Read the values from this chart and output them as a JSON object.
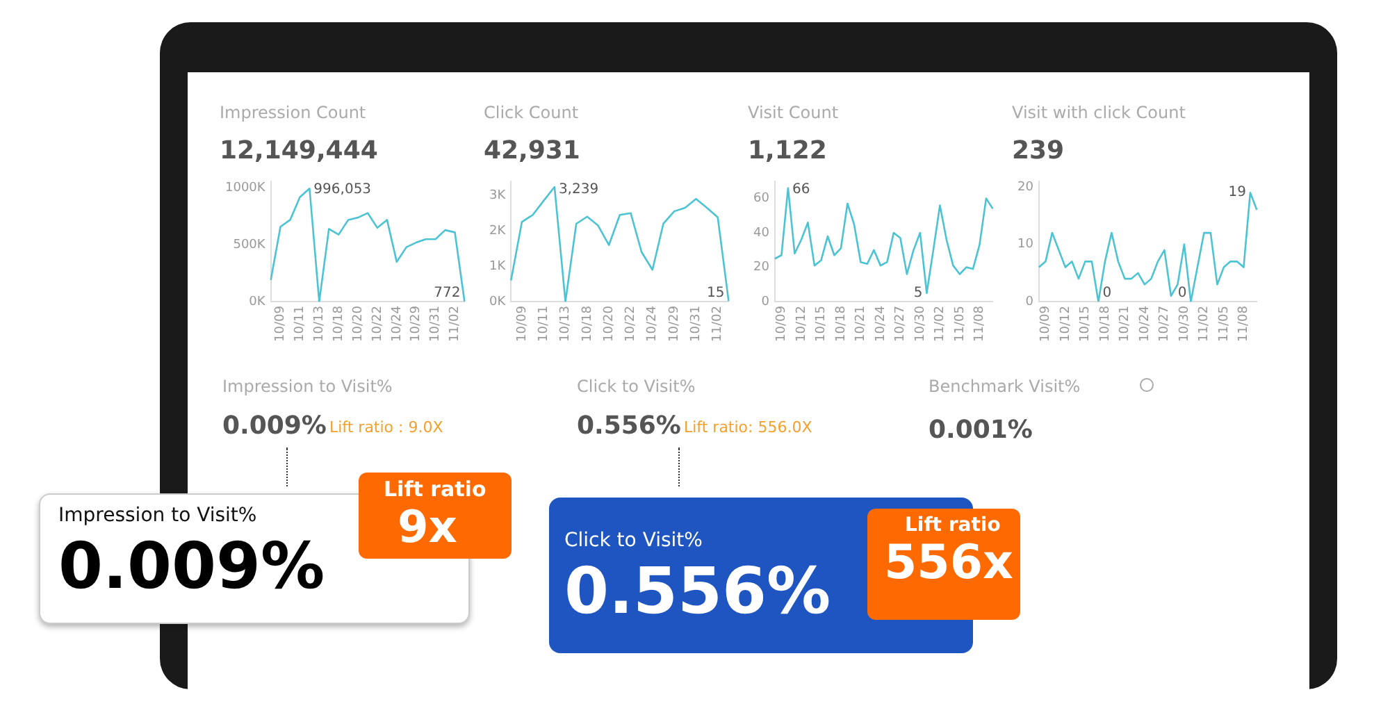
{
  "chart_data": [
    {
      "type": "line",
      "title": "Impression Count",
      "subtitle": "12,149,444",
      "color": "#4cc3d3",
      "marker": "none",
      "categories": [
        null,
        "10/09",
        null,
        "10/11",
        null,
        "10/13",
        null,
        "10/18",
        null,
        "10/20",
        null,
        "10/22",
        null,
        "10/24",
        null,
        "10/29",
        null,
        "10/31",
        null,
        "11/02",
        null
      ],
      "values": [
        190000,
        660000,
        720000,
        920000,
        996053,
        0,
        640000,
        590000,
        720000,
        740000,
        780000,
        650000,
        720000,
        350000,
        480000,
        520000,
        550000,
        550000,
        630000,
        610000,
        772
      ],
      "value_labels": [
        null,
        null,
        null,
        null,
        "996,053",
        null,
        null,
        null,
        null,
        null,
        null,
        null,
        null,
        null,
        null,
        null,
        null,
        null,
        null,
        null,
        "772"
      ],
      "ylim": [
        0,
        1060000
      ],
      "yticks": [
        {
          "value": 0,
          "label": "0K"
        },
        {
          "value": 500000,
          "label": "500K"
        },
        {
          "value": 1000000,
          "label": "1000K"
        }
      ]
    },
    {
      "type": "line",
      "title": "Click Count",
      "subtitle": "42,931",
      "color": "#4cc3d3",
      "marker": "none",
      "categories": [
        null,
        "10/09",
        null,
        "10/11",
        null,
        "10/13",
        null,
        "10/18",
        null,
        "10/20",
        null,
        "10/22",
        null,
        "10/24",
        null,
        "10/29",
        null,
        "10/31",
        null,
        "11/02",
        null
      ],
      "values": [
        600,
        2250,
        2450,
        2850,
        3239,
        0,
        2200,
        2400,
        2150,
        1600,
        2450,
        2500,
        1400,
        900,
        2200,
        2550,
        2650,
        2900,
        2650,
        2380,
        15
      ],
      "value_labels": [
        null,
        null,
        null,
        null,
        "3,239",
        null,
        null,
        null,
        null,
        null,
        null,
        null,
        null,
        null,
        null,
        null,
        null,
        null,
        null,
        null,
        "15"
      ],
      "ylim": [
        0,
        3400
      ],
      "yticks": [
        {
          "value": 0,
          "label": "0K"
        },
        {
          "value": 1000,
          "label": "1K"
        },
        {
          "value": 2000,
          "label": "2K"
        },
        {
          "value": 3000,
          "label": "3K"
        }
      ]
    },
    {
      "type": "line",
      "title": "Visit Count",
      "subtitle": "1,122",
      "color": "#4cc3d3",
      "marker": "none",
      "categories": [
        null,
        "10/09",
        null,
        null,
        "10/12",
        null,
        null,
        "10/15",
        null,
        null,
        "10/18",
        null,
        null,
        "10/21",
        null,
        null,
        "10/24",
        null,
        null,
        "10/27",
        null,
        null,
        "10/30",
        null,
        null,
        "11/02",
        null,
        null,
        "11/05",
        null,
        null,
        "11/08",
        null,
        null
      ],
      "values": [
        25,
        27,
        66,
        28,
        36,
        46,
        21,
        24,
        38,
        27,
        31,
        57,
        45,
        23,
        22,
        30,
        21,
        23,
        40,
        37,
        16,
        30,
        40,
        5,
        30,
        56,
        36,
        21,
        16,
        20,
        19,
        33,
        60,
        54
      ],
      "value_labels": [
        null,
        null,
        "66",
        null,
        null,
        null,
        null,
        null,
        null,
        null,
        null,
        null,
        null,
        null,
        null,
        null,
        null,
        null,
        null,
        null,
        null,
        null,
        null,
        "5",
        null,
        null,
        null,
        null,
        null,
        null,
        null,
        null,
        null,
        null
      ],
      "ylim": [
        0,
        70
      ],
      "yticks": [
        0,
        20,
        40,
        60
      ]
    },
    {
      "type": "line",
      "title": "Visit with click Count",
      "subtitle": "239",
      "color": "#4cc3d3",
      "marker": "none",
      "categories": [
        null,
        "10/09",
        null,
        null,
        "10/12",
        null,
        null,
        "10/15",
        null,
        null,
        "10/18",
        null,
        null,
        "10/21",
        null,
        null,
        "10/24",
        null,
        null,
        "10/27",
        null,
        null,
        "10/30",
        null,
        null,
        "11/02",
        null,
        null,
        "11/05",
        null,
        null,
        "11/08",
        null,
        null
      ],
      "values": [
        6,
        7,
        12,
        9,
        6,
        7,
        4,
        7,
        7,
        0,
        7,
        12,
        7,
        4,
        4,
        5,
        3,
        4,
        7,
        9,
        1,
        3,
        10,
        0,
        6,
        12,
        12,
        3,
        6,
        7,
        7,
        6,
        19,
        16
      ],
      "value_labels": [
        null,
        null,
        null,
        null,
        null,
        null,
        null,
        null,
        null,
        "0",
        null,
        null,
        null,
        null,
        null,
        null,
        null,
        null,
        null,
        null,
        null,
        null,
        null,
        "0",
        null,
        null,
        null,
        null,
        null,
        null,
        null,
        null,
        "19",
        null
      ],
      "ylim": [
        0,
        21
      ],
      "yticks": [
        0,
        10,
        20
      ]
    },
    {
      "type": "other",
      "annotations": [
        "Impression to Visit%",
        "0.009%",
        "Lift ratio : 9.0X",
        "Click to Visit%",
        "0.556%",
        "Lift ratio: 556.0X",
        "Benchmark Visit%",
        "0.001%",
        "Impression to Visit%",
        "0.009%",
        "Lift ratio",
        "9x",
        "Click to Visit%",
        "0.556%",
        "Lift ratio",
        "556x"
      ]
    }
  ]
}
